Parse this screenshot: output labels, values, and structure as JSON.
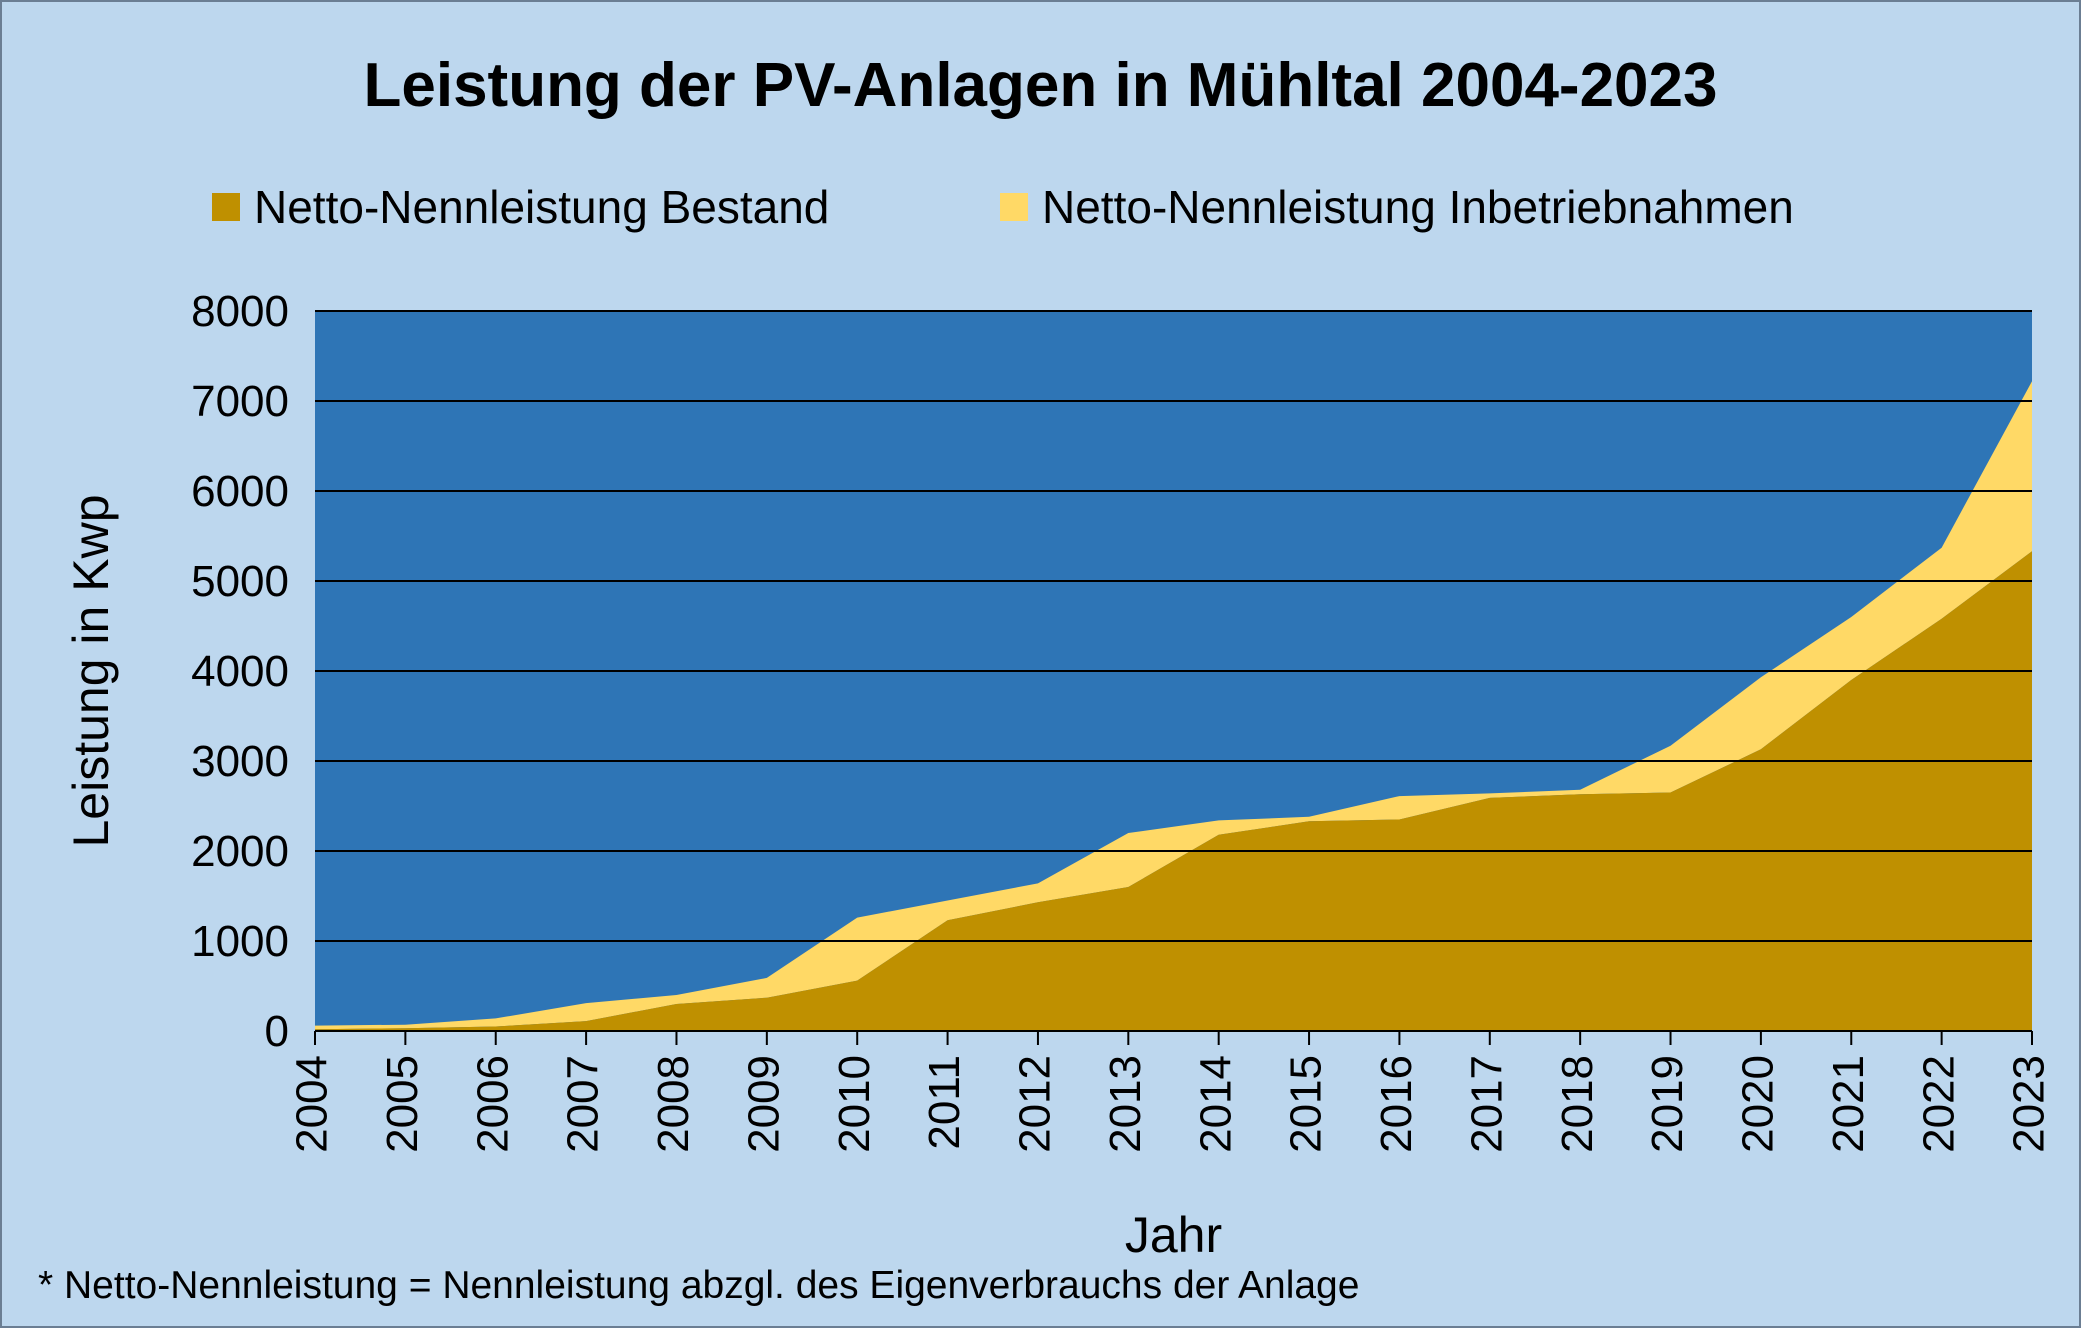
{
  "chart_data": {
    "type": "area",
    "title": "Leistung der PV-Anlagen in Mühltal 2004-2023",
    "xlabel": "Jahr",
    "ylabel": "Leistung in Kwp",
    "ylim": [
      0,
      8000
    ],
    "y_ticks": [
      "0",
      "1000",
      "2000",
      "3000",
      "4000",
      "5000",
      "6000",
      "7000",
      "8000"
    ],
    "categories": [
      "2004",
      "2005",
      "2006",
      "2007",
      "2008",
      "2009",
      "2010",
      "2011",
      "2012",
      "2013",
      "2014",
      "2015",
      "2016",
      "2017",
      "2018",
      "2019",
      "2020",
      "2021",
      "2022",
      "2023"
    ],
    "stacked": true,
    "grid": true,
    "legend_position": "top",
    "plot_background": "#2e75b6",
    "series": [
      {
        "name": "Netto-Nennleistung Bestand",
        "color": "#bf9000",
        "values": [
          20,
          30,
          50,
          110,
          300,
          370,
          560,
          1230,
          1430,
          1600,
          2180,
          2330,
          2350,
          2590,
          2630,
          2650,
          3130,
          3900,
          4580,
          5330
        ]
      },
      {
        "name": "Netto-Nennleistung Inbetriebnahmen",
        "color": "#ffd966",
        "values": [
          40,
          40,
          90,
          200,
          100,
          220,
          700,
          220,
          210,
          600,
          160,
          50,
          260,
          50,
          50,
          520,
          800,
          700,
          790,
          1890
        ]
      }
    ],
    "footnote": "* Netto-Nennleistung = Nennleistung abzgl. des Eigenverbrauchs der Anlage"
  }
}
